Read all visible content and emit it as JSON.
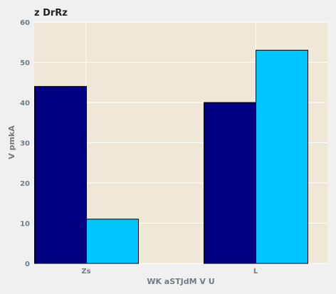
{
  "chart_data": {
    "type": "bar",
    "title": "z  DrRz",
    "xlabel": "WK aSTJdM V U",
    "ylabel": "V  pmkA",
    "categories": [
      "Zs",
      "L"
    ],
    "series": [
      {
        "values": [
          44,
          40
        ],
        "color": "#000080"
      },
      {
        "values": [
          11,
          53
        ],
        "color": "#00c5ff"
      }
    ],
    "ylim": [
      0,
      60
    ],
    "yticks": [
      0,
      10,
      20,
      30,
      40,
      50,
      60
    ],
    "grid": true,
    "plot_background": "#efe8d6",
    "page_background": "#f0f0f0"
  }
}
